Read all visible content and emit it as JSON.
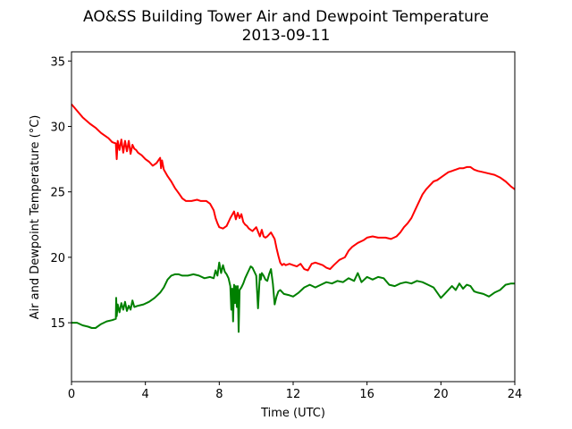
{
  "chart_data": {
    "type": "line",
    "title": "AO&SS Building Tower Air and Dewpoint Temperature",
    "subtitle": "2013-09-11",
    "xlabel": "Time (UTC)",
    "ylabel": "Air and Dewpoint Temperature (°C)",
    "xlim": [
      0,
      24
    ],
    "ylim": [
      10.5,
      35.7
    ],
    "xticks": [
      0,
      4,
      8,
      12,
      16,
      20,
      24
    ],
    "yticks": [
      15,
      20,
      25,
      30,
      35
    ],
    "grid": false,
    "legend": "none",
    "series": [
      {
        "color": "#ff0000",
        "x": [
          0.0,
          0.3,
          0.6,
          1.0,
          1.3,
          1.6,
          2.0,
          2.2,
          2.4,
          2.45,
          2.5,
          2.6,
          2.7,
          2.8,
          2.9,
          3.0,
          3.1,
          3.2,
          3.3,
          3.4,
          3.5,
          3.6,
          3.8,
          4.0,
          4.2,
          4.4,
          4.6,
          4.8,
          4.85,
          4.9,
          5.0,
          5.2,
          5.4,
          5.6,
          5.8,
          6.0,
          6.2,
          6.5,
          6.8,
          7.0,
          7.3,
          7.5,
          7.7,
          7.8,
          7.9,
          8.0,
          8.2,
          8.4,
          8.6,
          8.8,
          8.9,
          9.0,
          9.1,
          9.2,
          9.3,
          9.4,
          9.5,
          9.6,
          9.8,
          10.0,
          10.2,
          10.3,
          10.4,
          10.5,
          10.6,
          10.8,
          11.0,
          11.1,
          11.2,
          11.3,
          11.4,
          11.5,
          11.6,
          11.8,
          12.0,
          12.2,
          12.4,
          12.6,
          12.8,
          13.0,
          13.2,
          13.4,
          13.6,
          13.8,
          14.0,
          14.2,
          14.5,
          14.8,
          15.0,
          15.2,
          15.5,
          15.8,
          16.0,
          16.3,
          16.6,
          17.0,
          17.3,
          17.6,
          17.8,
          18.0,
          18.2,
          18.4,
          18.6,
          18.8,
          19.0,
          19.2,
          19.4,
          19.6,
          19.8,
          20.0,
          20.2,
          20.4,
          20.6,
          20.8,
          21.0,
          21.2,
          21.4,
          21.6,
          21.8,
          22.0,
          22.3,
          22.6,
          22.9,
          23.2,
          23.5,
          23.8,
          24.0
        ],
        "values": [
          31.7,
          31.2,
          30.7,
          30.2,
          29.9,
          29.5,
          29.1,
          28.8,
          28.7,
          27.5,
          28.9,
          28.2,
          29.0,
          28.0,
          28.9,
          28.1,
          28.9,
          27.9,
          28.6,
          28.3,
          28.2,
          28.0,
          27.8,
          27.5,
          27.3,
          27.0,
          27.2,
          27.6,
          26.8,
          27.4,
          26.7,
          26.2,
          25.8,
          25.3,
          24.9,
          24.5,
          24.3,
          24.3,
          24.4,
          24.3,
          24.3,
          24.1,
          23.6,
          23.0,
          22.6,
          22.3,
          22.2,
          22.4,
          23.0,
          23.5,
          22.9,
          23.4,
          23.0,
          23.3,
          22.7,
          22.5,
          22.4,
          22.2,
          22.0,
          22.3,
          21.6,
          22.1,
          21.6,
          21.5,
          21.6,
          21.9,
          21.4,
          20.7,
          20.1,
          19.6,
          19.4,
          19.5,
          19.4,
          19.5,
          19.4,
          19.3,
          19.5,
          19.1,
          19.0,
          19.5,
          19.6,
          19.5,
          19.4,
          19.2,
          19.1,
          19.4,
          19.8,
          20.0,
          20.5,
          20.8,
          21.1,
          21.3,
          21.5,
          21.6,
          21.5,
          21.5,
          21.4,
          21.6,
          21.9,
          22.3,
          22.6,
          23.0,
          23.6,
          24.2,
          24.8,
          25.2,
          25.5,
          25.8,
          25.9,
          26.1,
          26.3,
          26.5,
          26.6,
          26.7,
          26.8,
          26.8,
          26.9,
          26.9,
          26.7,
          26.6,
          26.5,
          26.4,
          26.3,
          26.1,
          25.8,
          25.4,
          25.2
        ]
      },
      {
        "color": "#008000",
        "x": [
          0.0,
          0.3,
          0.6,
          0.9,
          1.1,
          1.3,
          1.6,
          1.9,
          2.2,
          2.4,
          2.42,
          2.45,
          2.5,
          2.6,
          2.7,
          2.8,
          2.9,
          3.0,
          3.1,
          3.2,
          3.3,
          3.4,
          3.6,
          3.9,
          4.2,
          4.5,
          4.8,
          5.0,
          5.2,
          5.4,
          5.6,
          5.8,
          6.0,
          6.3,
          6.6,
          6.9,
          7.2,
          7.5,
          7.7,
          7.8,
          7.9,
          8.0,
          8.1,
          8.2,
          8.3,
          8.4,
          8.5,
          8.6,
          8.65,
          8.7,
          8.75,
          8.8,
          8.85,
          8.9,
          8.95,
          9.0,
          9.05,
          9.1,
          9.2,
          9.3,
          9.4,
          9.5,
          9.6,
          9.7,
          9.8,
          9.9,
          10.0,
          10.1,
          10.2,
          10.25,
          10.3,
          10.4,
          10.5,
          10.6,
          10.7,
          10.8,
          10.9,
          11.0,
          11.1,
          11.2,
          11.3,
          11.5,
          11.8,
          12.0,
          12.3,
          12.6,
          12.9,
          13.2,
          13.5,
          13.8,
          14.1,
          14.4,
          14.7,
          15.0,
          15.3,
          15.5,
          15.7,
          16.0,
          16.3,
          16.6,
          16.9,
          17.2,
          17.5,
          17.8,
          18.1,
          18.4,
          18.7,
          19.0,
          19.3,
          19.6,
          19.8,
          20.0,
          20.2,
          20.4,
          20.6,
          20.8,
          21.0,
          21.2,
          21.4,
          21.6,
          21.8,
          22.0,
          22.3,
          22.6,
          22.9,
          23.2,
          23.5,
          23.8,
          24.0
        ],
        "values": [
          15.0,
          15.0,
          14.8,
          14.7,
          14.6,
          14.6,
          14.9,
          15.1,
          15.2,
          15.3,
          16.9,
          15.5,
          16.4,
          15.8,
          16.5,
          16.0,
          16.6,
          15.9,
          16.3,
          16.0,
          16.7,
          16.2,
          16.3,
          16.4,
          16.6,
          16.9,
          17.3,
          17.7,
          18.3,
          18.6,
          18.7,
          18.7,
          18.6,
          18.6,
          18.7,
          18.6,
          18.4,
          18.5,
          18.4,
          19.0,
          18.6,
          19.6,
          18.8,
          19.4,
          18.9,
          18.7,
          18.4,
          17.8,
          16.0,
          17.6,
          15.1,
          17.9,
          16.5,
          17.8,
          16.2,
          17.8,
          14.3,
          17.5,
          17.7,
          18.0,
          18.4,
          18.7,
          19.0,
          19.3,
          19.2,
          18.9,
          18.6,
          16.1,
          18.7,
          18.3,
          18.8,
          18.6,
          18.3,
          18.2,
          18.7,
          19.1,
          18.0,
          16.4,
          17.0,
          17.4,
          17.5,
          17.2,
          17.1,
          17.0,
          17.3,
          17.7,
          17.9,
          17.7,
          17.9,
          18.1,
          18.0,
          18.2,
          18.1,
          18.4,
          18.2,
          18.8,
          18.1,
          18.5,
          18.3,
          18.5,
          18.4,
          17.9,
          17.8,
          18.0,
          18.1,
          18.0,
          18.2,
          18.1,
          17.9,
          17.7,
          17.3,
          16.9,
          17.2,
          17.5,
          17.8,
          17.5,
          18.0,
          17.6,
          17.9,
          17.8,
          17.4,
          17.3,
          17.2,
          17.0,
          17.3,
          17.5,
          17.9,
          18.0,
          18.0
        ]
      }
    ]
  }
}
